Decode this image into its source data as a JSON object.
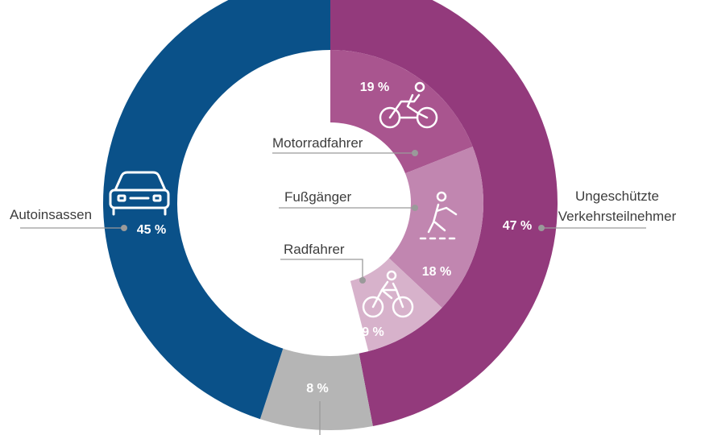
{
  "chart_data": {
    "type": "donut",
    "outer_ring": {
      "slices": [
        {
          "label": "Ungeschützte Verkehrsteilnehmer",
          "label_lines": [
            "Ungeschützte",
            "Verkehrsteilnehmer"
          ],
          "value": 47,
          "value_label": "47 %",
          "color": "#933a7c"
        },
        {
          "label": "",
          "value": 8,
          "value_label": "8 %",
          "color": "#b5b5b5"
        },
        {
          "label": "Autoinsassen",
          "value": 45,
          "value_label": "45 %",
          "color": "#0a5189",
          "icon": "car-icon"
        }
      ]
    },
    "inner_ring": {
      "slices": [
        {
          "label": "Motorradfahrer",
          "value": 19,
          "value_label": "19 %",
          "color": "#a9558f",
          "icon": "motorcycle-icon"
        },
        {
          "label": "Fußgänger",
          "value": 18,
          "value_label": "18 %",
          "color": "#c186b0",
          "icon": "pedestrian-icon"
        },
        {
          "label": "Radfahrer",
          "value": 9,
          "value_label": "9 %",
          "color": "#d7b2cb",
          "icon": "bicycle-icon"
        }
      ]
    },
    "leader_line_color": "#9a9a9a"
  }
}
